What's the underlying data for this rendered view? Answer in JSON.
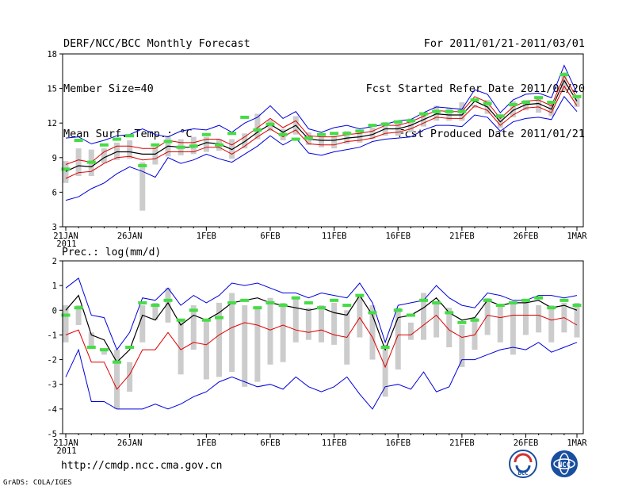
{
  "header": {
    "left": [
      "DERF/NCC/BCC Monthly Forecast",
      "Member Size=40",
      "Mean Surf. Temp.: °C"
    ],
    "right": [
      "For 2011/01/21-2011/03/01",
      "Fcst Started Refer Date 2011/01/20",
      "Fcst Produced Date 2011/01/21"
    ]
  },
  "footer": {
    "url": "http://cmdp.ncc.cma.gov.cn",
    "credit": "GrADS: COLA/IGES"
  },
  "logos": {
    "left_text": "BCC",
    "right_text": "NCC"
  },
  "colors": {
    "envelope": "#0000dd",
    "spread": "#dd0000",
    "mean": "#000000",
    "box": "#cccccc",
    "member": "#44dd44"
  },
  "chart_data": [
    {
      "type": "line",
      "title": "Mean Surf. Temp.: °C",
      "ylim": [
        3,
        18
      ],
      "yticks": [
        "3",
        "6",
        "9",
        "12",
        "15",
        "18"
      ],
      "xticks": [
        "21JAN",
        "26JAN",
        "1FEB",
        "6FEB",
        "11FEB",
        "16FEB",
        "21FEB",
        "26FEB",
        "1MAR"
      ],
      "xtick_days": [
        0,
        5,
        11,
        16,
        21,
        26,
        31,
        36,
        40
      ],
      "year_label": "2011",
      "days": 41,
      "series": [
        {
          "name": "max",
          "values": [
            10.7,
            10.8,
            10.2,
            10.5,
            10.9,
            11.0,
            11.5,
            11.0,
            10.8,
            11.3,
            11.5,
            11.4,
            11.8,
            11.2,
            12.0,
            12.5,
            13.5,
            12.4,
            13.0,
            11.5,
            11.2,
            11.6,
            11.8,
            11.5,
            11.7,
            11.9,
            12.2,
            12.3,
            12.9,
            13.4,
            13.3,
            13.2,
            14.9,
            14.5,
            12.9,
            14.0,
            14.5,
            14.6,
            14.2,
            17.0,
            14.6
          ]
        },
        {
          "name": "upper",
          "values": [
            8.4,
            8.8,
            8.6,
            9.5,
            10.0,
            10.0,
            9.8,
            9.8,
            10.5,
            10.3,
            10.3,
            10.6,
            10.6,
            10.1,
            10.8,
            11.6,
            12.4,
            11.6,
            12.2,
            10.9,
            10.8,
            10.8,
            11.0,
            11.1,
            11.3,
            11.8,
            11.8,
            12.1,
            12.6,
            13.1,
            13.0,
            13.0,
            14.3,
            13.8,
            12.4,
            13.4,
            13.9,
            14.0,
            13.5,
            16.1,
            14.2
          ]
        },
        {
          "name": "mean",
          "values": [
            7.8,
            8.3,
            8.2,
            9.0,
            9.5,
            9.5,
            9.3,
            9.3,
            10.0,
            9.9,
            9.9,
            10.3,
            10.2,
            9.7,
            10.4,
            11.2,
            11.9,
            11.2,
            11.8,
            10.6,
            10.5,
            10.5,
            10.7,
            10.8,
            11.0,
            11.5,
            11.5,
            11.8,
            12.3,
            12.8,
            12.7,
            12.7,
            13.9,
            13.4,
            12.1,
            13.1,
            13.6,
            13.7,
            13.2,
            15.7,
            13.9
          ]
        },
        {
          "name": "lower",
          "values": [
            7.2,
            7.7,
            7.8,
            8.5,
            9.0,
            9.1,
            8.8,
            8.9,
            9.5,
            9.5,
            9.5,
            9.9,
            9.9,
            9.3,
            10.0,
            10.8,
            11.5,
            10.8,
            11.4,
            10.2,
            10.1,
            10.1,
            10.4,
            10.5,
            10.7,
            11.1,
            11.2,
            11.5,
            12.0,
            12.5,
            12.4,
            12.4,
            13.5,
            13.1,
            11.8,
            12.7,
            13.3,
            13.4,
            12.9,
            15.2,
            13.5
          ]
        },
        {
          "name": "min",
          "values": [
            5.3,
            5.6,
            6.3,
            6.8,
            7.6,
            8.2,
            7.8,
            7.3,
            9.0,
            8.5,
            8.8,
            9.3,
            8.9,
            8.6,
            9.3,
            10.0,
            10.9,
            10.1,
            10.7,
            9.4,
            9.2,
            9.5,
            9.7,
            9.9,
            10.4,
            10.6,
            10.7,
            10.8,
            11.4,
            11.8,
            11.8,
            11.7,
            12.7,
            12.5,
            11.3,
            12.1,
            12.4,
            12.5,
            12.3,
            14.3,
            13.0
          ]
        },
        {
          "name": "member",
          "values": [
            8.0,
            10.5,
            8.6,
            10.1,
            10.6,
            10.9,
            8.3,
            10.1,
            10.4,
            9.9,
            10.0,
            11.0,
            10.1,
            11.1,
            12.5,
            11.4,
            11.9,
            11.0,
            10.6,
            10.7,
            11.0,
            11.1,
            11.1,
            11.3,
            11.8,
            11.9,
            12.1,
            12.2,
            12.8,
            13.0,
            13.0,
            13.0,
            14.0,
            13.7,
            12.6,
            13.6,
            13.8,
            14.2,
            13.8,
            16.2,
            14.3
          ]
        },
        {
          "name": "box_high",
          "values": [
            8.7,
            9.8,
            9.7,
            9.8,
            10.3,
            10.5,
            8.6,
            9.9,
            10.9,
            10.6,
            10.8,
            10.8,
            10.6,
            10.6,
            11.1,
            12.8,
            12.3,
            11.5,
            12.6,
            11.2,
            10.8,
            10.9,
            11.3,
            11.3,
            11.6,
            12.1,
            12.1,
            12.4,
            12.9,
            13.5,
            13.3,
            13.8,
            13.6,
            14.0,
            12.8,
            13.9,
            14.0,
            14.1,
            13.9,
            16.4,
            14.4
          ]
        },
        {
          "name": "box_low",
          "values": [
            6.8,
            7.4,
            7.4,
            8.5,
            8.8,
            8.9,
            4.4,
            8.4,
            9.1,
            9.2,
            9.3,
            9.5,
            9.6,
            8.9,
            9.8,
            10.6,
            11.3,
            10.5,
            11.0,
            10.1,
            9.9,
            9.8,
            10.2,
            10.3,
            10.6,
            10.9,
            10.9,
            11.2,
            11.7,
            12.2,
            12.2,
            12.2,
            13.3,
            12.8,
            11.6,
            12.5,
            13.1,
            12.9,
            12.6,
            14.8,
            13.4
          ]
        }
      ]
    },
    {
      "type": "line",
      "title": "Prec.: log(mm/d)",
      "ylim": [
        -5,
        2
      ],
      "yticks": [
        "-5",
        "-4",
        "-3",
        "-2",
        "-1",
        "0",
        "1",
        "2"
      ],
      "xticks": [
        "21JAN",
        "26JAN",
        "1FEB",
        "6FEB",
        "11FEB",
        "16FEB",
        "21FEB",
        "26FEB",
        "1MAR"
      ],
      "xtick_days": [
        0,
        5,
        11,
        16,
        21,
        26,
        31,
        36,
        40
      ],
      "year_label": "2011",
      "days": 41,
      "series": [
        {
          "name": "max",
          "values": [
            0.9,
            1.3,
            -0.2,
            -0.3,
            -1.6,
            -0.9,
            0.5,
            0.4,
            0.9,
            0.2,
            0.6,
            0.3,
            0.6,
            1.1,
            1.0,
            1.1,
            0.9,
            0.7,
            0.7,
            0.5,
            0.7,
            0.6,
            0.5,
            1.1,
            0.3,
            -1.3,
            0.2,
            0.3,
            0.4,
            1.0,
            0.5,
            0.2,
            0.1,
            0.7,
            0.6,
            0.4,
            0.4,
            0.6,
            0.6,
            0.5,
            0.6
          ]
        },
        {
          "name": "mean",
          "values": [
            0.0,
            0.6,
            -1.0,
            -1.2,
            -2.1,
            -1.6,
            -0.2,
            -0.4,
            0.3,
            -0.6,
            -0.2,
            -0.4,
            -0.1,
            0.3,
            0.4,
            0.5,
            0.3,
            0.2,
            0.1,
            0.0,
            0.1,
            -0.1,
            -0.2,
            0.6,
            -0.2,
            -1.6,
            -0.3,
            -0.2,
            0.1,
            0.5,
            -0.1,
            -0.4,
            -0.3,
            0.4,
            0.2,
            0.3,
            0.3,
            0.4,
            0.1,
            0.2,
            0.0
          ]
        },
        {
          "name": "lower",
          "values": [
            -1.0,
            -0.8,
            -2.1,
            -2.1,
            -3.2,
            -2.6,
            -1.6,
            -1.6,
            -0.9,
            -1.6,
            -1.3,
            -1.4,
            -1.0,
            -0.7,
            -0.5,
            -0.6,
            -0.8,
            -0.6,
            -0.8,
            -0.9,
            -0.8,
            -1.0,
            -1.1,
            -0.3,
            -1.1,
            -2.3,
            -1.0,
            -1.0,
            -0.6,
            -0.2,
            -0.8,
            -1.1,
            -1.0,
            -0.2,
            -0.3,
            -0.2,
            -0.2,
            -0.2,
            -0.4,
            -0.3,
            -0.6
          ]
        },
        {
          "name": "min",
          "values": [
            -2.7,
            -1.6,
            -3.7,
            -3.7,
            -4.0,
            -4.0,
            -4.0,
            -3.8,
            -4.0,
            -3.8,
            -3.5,
            -3.3,
            -2.9,
            -2.7,
            -2.9,
            -3.1,
            -3.0,
            -3.2,
            -2.7,
            -3.1,
            -3.3,
            -3.1,
            -2.7,
            -3.4,
            -4.0,
            -3.1,
            -3.0,
            -3.2,
            -2.5,
            -3.3,
            -3.1,
            -2.0,
            -2.0,
            -1.8,
            -1.6,
            -1.5,
            -1.6,
            -1.3,
            -1.7,
            -1.5,
            -1.3
          ]
        },
        {
          "name": "member",
          "values": [
            -0.2,
            0.1,
            -1.5,
            -1.6,
            -2.1,
            -1.5,
            0.3,
            0.2,
            0.4,
            -0.4,
            0.0,
            -0.4,
            -0.3,
            0.3,
            0.4,
            0.1,
            0.3,
            0.2,
            0.5,
            0.3,
            0.1,
            0.4,
            0.2,
            0.6,
            -0.1,
            -1.5,
            0.0,
            -0.2,
            0.4,
            0.3,
            -0.1,
            -0.5,
            -0.4,
            0.4,
            0.2,
            0.3,
            0.4,
            0.5,
            0.1,
            0.4,
            0.2
          ]
        },
        {
          "name": "box_high",
          "values": [
            0.2,
            0.2,
            -0.9,
            -1.6,
            -1.6,
            -2.1,
            0.2,
            0.3,
            0.9,
            -0.4,
            0.2,
            -0.4,
            0.3,
            0.7,
            0.2,
            0.1,
            0.5,
            0.3,
            0.5,
            0.1,
            0.2,
            0.3,
            0.0,
            0.6,
            0.2,
            -1.4,
            0.1,
            -0.5,
            0.7,
            0.3,
            0.1,
            -0.6,
            -0.3,
            0.5,
            0.2,
            0.3,
            0.3,
            0.2,
            0.2,
            0.3,
            0.3
          ]
        },
        {
          "name": "box_low",
          "values": [
            -1.3,
            -0.6,
            -1.5,
            -1.8,
            -4.0,
            -3.3,
            -1.3,
            -0.4,
            -0.5,
            -2.6,
            -1.6,
            -2.8,
            -2.7,
            -2.5,
            -3.1,
            -2.9,
            -2.2,
            -2.1,
            -1.3,
            -1.2,
            -1.3,
            -1.4,
            -2.2,
            -1.1,
            -2.0,
            -3.5,
            -2.4,
            -1.2,
            -1.2,
            -1.1,
            -1.5,
            -2.3,
            -1.6,
            -1.0,
            -1.3,
            -1.8,
            -1.0,
            -0.9,
            -1.3,
            -0.9,
            -1.1
          ]
        }
      ]
    }
  ]
}
